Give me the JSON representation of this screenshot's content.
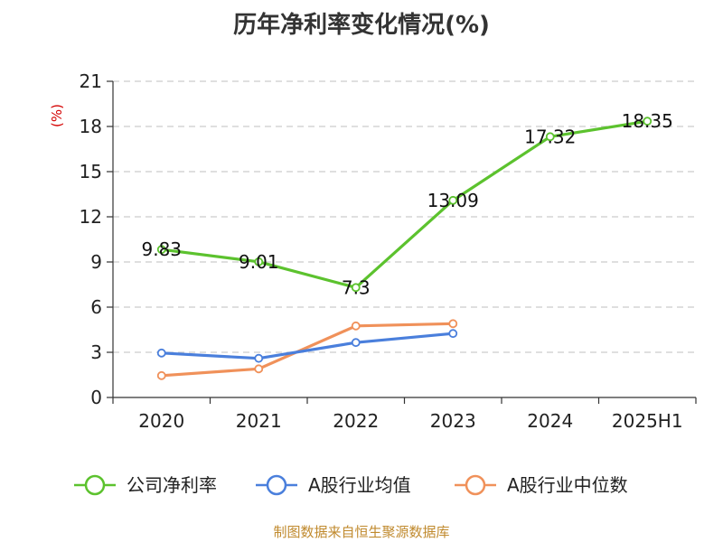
{
  "chart_data": {
    "type": "line",
    "title": "历年净利率变化情况(%)",
    "ylabel": "(%)",
    "xlabel": "",
    "categories": [
      "2020",
      "2021",
      "2022",
      "2023",
      "2024",
      "2025H1"
    ],
    "ylim": [
      0,
      21
    ],
    "yticks": [
      0,
      3,
      6,
      9,
      12,
      15,
      18,
      21
    ],
    "grid": true,
    "legend_position": "bottom",
    "series": [
      {
        "name": "公司净利率",
        "color": "#5cc22e",
        "values": [
          9.83,
          9.01,
          7.3,
          13.09,
          17.32,
          18.35
        ],
        "labels": [
          "9.83",
          "9.01",
          "7.3",
          "13.09",
          "17.32",
          "18.35"
        ]
      },
      {
        "name": "A股行业均值",
        "color": "#4a7fdc",
        "values": [
          2.95,
          2.6,
          3.65,
          4.25,
          null,
          null
        ]
      },
      {
        "name": "A股行业中位数",
        "color": "#f0915a",
        "values": [
          1.45,
          1.9,
          4.75,
          4.9,
          null,
          null
        ]
      }
    ]
  },
  "source_text": "制图数据来自恒生聚源数据库"
}
